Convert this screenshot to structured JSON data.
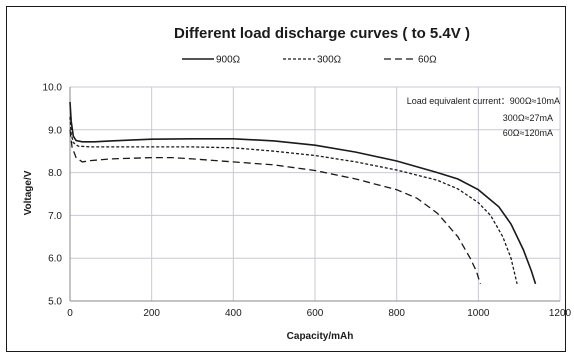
{
  "chart_data": {
    "type": "line",
    "title": "Different load discharge curves ( to 5.4V )",
    "xlabel": "Capacity/mAh",
    "ylabel": "Voltage/V",
    "xlim": [
      0,
      1200
    ],
    "ylim": [
      5.0,
      10.0
    ],
    "x_ticks": [
      "0",
      "200",
      "400",
      "600",
      "800",
      "1000",
      "1200"
    ],
    "y_ticks": [
      "5.0",
      "6.0",
      "7.0",
      "8.0",
      "9.0",
      "10.0"
    ],
    "grid": true,
    "legend_position": "top-center",
    "annotations": [
      "Load equivalent current：900Ω≈10mA",
      "300Ω≈27mA",
      "60Ω≈120mA"
    ],
    "series": [
      {
        "name": "900Ω",
        "dash": "solid",
        "points": [
          [
            0,
            9.65
          ],
          [
            3,
            9.2
          ],
          [
            8,
            8.85
          ],
          [
            15,
            8.75
          ],
          [
            30,
            8.72
          ],
          [
            60,
            8.72
          ],
          [
            100,
            8.74
          ],
          [
            200,
            8.78
          ],
          [
            300,
            8.79
          ],
          [
            400,
            8.79
          ],
          [
            500,
            8.74
          ],
          [
            600,
            8.64
          ],
          [
            700,
            8.48
          ],
          [
            800,
            8.27
          ],
          [
            900,
            8.0
          ],
          [
            950,
            7.85
          ],
          [
            1000,
            7.6
          ],
          [
            1050,
            7.2
          ],
          [
            1080,
            6.8
          ],
          [
            1110,
            6.2
          ],
          [
            1130,
            5.7
          ],
          [
            1140,
            5.4
          ]
        ]
      },
      {
        "name": "300Ω",
        "dash": "short-dash",
        "points": [
          [
            0,
            9.3
          ],
          [
            3,
            8.9
          ],
          [
            8,
            8.7
          ],
          [
            20,
            8.62
          ],
          [
            50,
            8.6
          ],
          [
            100,
            8.6
          ],
          [
            200,
            8.6
          ],
          [
            300,
            8.6
          ],
          [
            400,
            8.58
          ],
          [
            500,
            8.5
          ],
          [
            600,
            8.4
          ],
          [
            700,
            8.25
          ],
          [
            800,
            8.06
          ],
          [
            900,
            7.82
          ],
          [
            950,
            7.62
          ],
          [
            1000,
            7.3
          ],
          [
            1030,
            7.0
          ],
          [
            1060,
            6.5
          ],
          [
            1080,
            6.0
          ],
          [
            1095,
            5.4
          ]
        ]
      },
      {
        "name": "60Ω",
        "dash": "long-dash",
        "points": [
          [
            0,
            9.0
          ],
          [
            5,
            8.6
          ],
          [
            15,
            8.35
          ],
          [
            30,
            8.25
          ],
          [
            50,
            8.28
          ],
          [
            100,
            8.32
          ],
          [
            200,
            8.35
          ],
          [
            250,
            8.35
          ],
          [
            300,
            8.32
          ],
          [
            400,
            8.25
          ],
          [
            500,
            8.18
          ],
          [
            600,
            8.05
          ],
          [
            700,
            7.85
          ],
          [
            800,
            7.6
          ],
          [
            850,
            7.4
          ],
          [
            900,
            7.05
          ],
          [
            950,
            6.5
          ],
          [
            980,
            6.0
          ],
          [
            995,
            5.7
          ],
          [
            1005,
            5.4
          ]
        ]
      }
    ]
  }
}
